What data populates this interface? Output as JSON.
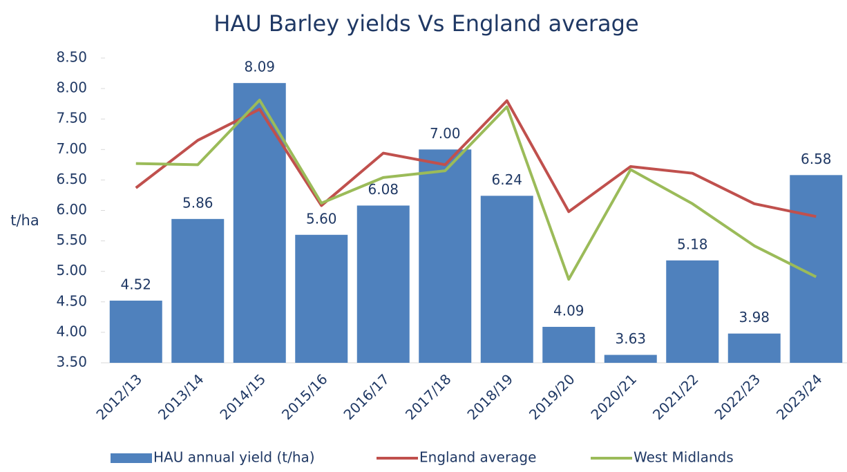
{
  "chart_data": {
    "type": "bar",
    "title": "HAU Barley yields Vs England average",
    "y_label": "t/ha",
    "categories": [
      "2012/13",
      "2013/14",
      "2014/15",
      "2015/16",
      "2016/17",
      "2017/18",
      "2018/19",
      "2019/20",
      "2020/21",
      "2021/22",
      "2022/23",
      "2023/24"
    ],
    "series": [
      {
        "name": "HAU annual yield (t/ha)",
        "type": "bar",
        "color": "#4f81bd",
        "values": [
          4.52,
          5.86,
          8.09,
          5.6,
          6.08,
          7.0,
          6.24,
          4.09,
          3.63,
          5.18,
          3.98,
          6.58
        ],
        "value_labels": [
          "4.52",
          "5.86",
          "8.09",
          "5.60",
          "6.08",
          "7.00",
          "6.24",
          "4.09",
          "3.63",
          "5.18",
          "3.98",
          "6.58"
        ]
      },
      {
        "name": "England average",
        "type": "line",
        "color": "#c0504d",
        "values": [
          6.37,
          7.15,
          7.66,
          6.08,
          6.94,
          6.75,
          7.8,
          5.98,
          6.72,
          6.61,
          6.11,
          5.9
        ]
      },
      {
        "name": "West Midlands",
        "type": "line",
        "color": "#9bbb59",
        "values": [
          6.77,
          6.75,
          7.81,
          6.12,
          6.54,
          6.65,
          7.7,
          4.87,
          6.67,
          6.11,
          5.42,
          4.91
        ]
      }
    ],
    "ylim": [
      3.5,
      8.5
    ],
    "yticks": [
      {
        "value": 3.5,
        "label": "3.50"
      },
      {
        "value": 4,
        "label": "4.00"
      },
      {
        "value": 4.5,
        "label": "4.50"
      },
      {
        "value": 5,
        "label": "5.00"
      },
      {
        "value": 5.5,
        "label": "5.50"
      },
      {
        "value": 6,
        "label": "6.00"
      },
      {
        "value": 6.5,
        "label": "6.50"
      },
      {
        "value": 7,
        "label": "7.00"
      },
      {
        "value": 7.5,
        "label": "7.50"
      },
      {
        "value": 8,
        "label": "8.00"
      },
      {
        "value": 8.5,
        "label": "8.50"
      }
    ],
    "legend": "bottom"
  }
}
